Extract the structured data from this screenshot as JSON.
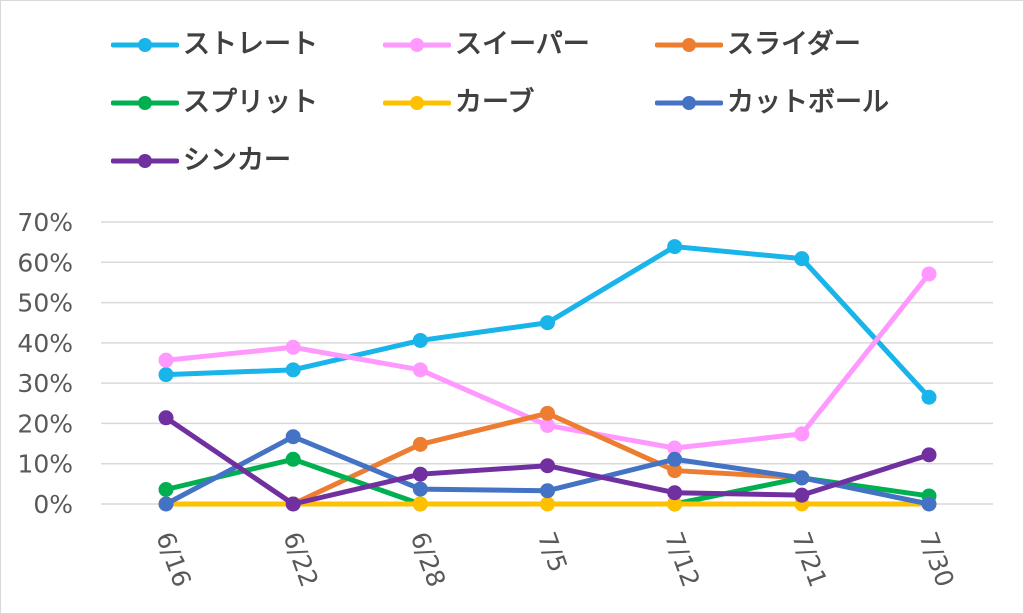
{
  "chart_data": {
    "type": "line",
    "categories": [
      "6/16",
      "6/22",
      "6/28",
      "7/5",
      "7/12",
      "7/21",
      "7/30"
    ],
    "ylim": [
      0,
      70
    ],
    "yticks": [
      "0%",
      "10%",
      "20%",
      "30%",
      "40%",
      "50%",
      "60%",
      "70%"
    ],
    "grid": true,
    "legend": "top",
    "series": [
      {
        "name": "ストレート",
        "color": "#19b4ea",
        "values": [
          32.1,
          33.3,
          40.6,
          45.0,
          63.9,
          60.9,
          26.5
        ]
      },
      {
        "name": "スイーパー",
        "color": "#ff99ff",
        "values": [
          35.7,
          38.9,
          33.3,
          19.5,
          13.9,
          17.4,
          57.1
        ]
      },
      {
        "name": "スライダー",
        "color": "#ed7d31",
        "values": [
          null,
          0,
          14.8,
          22.5,
          8.3,
          6.5,
          null
        ]
      },
      {
        "name": "スプリット",
        "color": "#00b050",
        "values": [
          3.6,
          11.1,
          0,
          null,
          0,
          6.5,
          2.0
        ]
      },
      {
        "name": "カーブ",
        "color": "#ffc000",
        "values": [
          0,
          0,
          0,
          0,
          0,
          0,
          0
        ]
      },
      {
        "name": "カットボール",
        "color": "#4472c4",
        "values": [
          0,
          16.7,
          3.7,
          3.3,
          11.1,
          6.5,
          0
        ]
      },
      {
        "name": "シンカー",
        "color": "#7030a0",
        "values": [
          21.4,
          0,
          7.4,
          9.5,
          2.8,
          2.2,
          12.2
        ]
      }
    ]
  }
}
